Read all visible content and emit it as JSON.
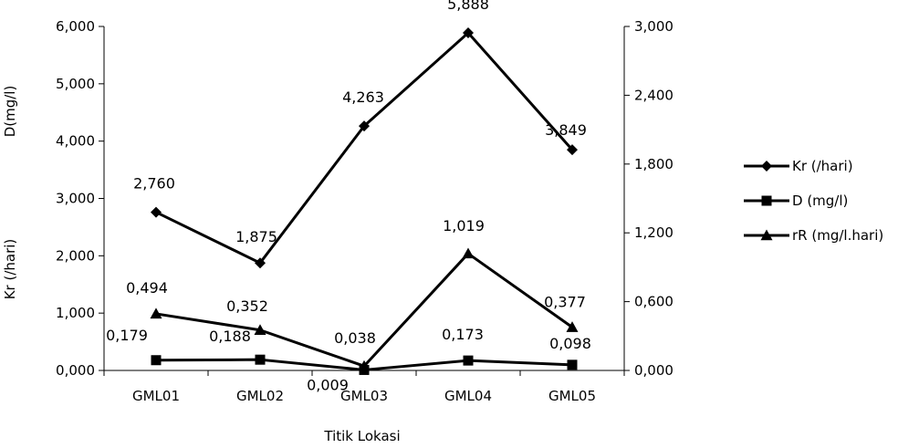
{
  "chart_data": {
    "type": "line",
    "categories": [
      "GML01",
      "GML02",
      "GML03",
      "GML04",
      "GML05"
    ],
    "xlabel": "Titik Lokasi",
    "ylabel_left_upper": "D(mg/l)",
    "ylabel_left_lower": "Kr (/hari)",
    "y_left": {
      "range": [
        0,
        6
      ],
      "ticks": [
        0,
        1,
        2,
        3,
        4,
        5,
        6
      ],
      "tick_labels": [
        "0,000",
        "1,000",
        "2,000",
        "3,000",
        "4,000",
        "5,000",
        "6,000"
      ]
    },
    "y_right": {
      "range": [
        0,
        3
      ],
      "ticks": [
        0,
        0.6,
        1.2,
        1.8,
        2.4,
        3.0
      ],
      "tick_labels": [
        "0,000",
        "0,600",
        "1,200",
        "1,800",
        "2,400",
        "3,000"
      ]
    },
    "series": [
      {
        "name": "Kr (/hari)",
        "axis": "left",
        "marker": "diamond",
        "values": [
          2.76,
          1.875,
          4.263,
          5.888,
          3.849
        ],
        "labels": [
          "2,760",
          "1,875",
          "4,263",
          "5,888",
          "3,849"
        ]
      },
      {
        "name": "D (mg/l)",
        "axis": "left",
        "marker": "square",
        "values": [
          0.179,
          0.188,
          0.009,
          0.173,
          0.098
        ],
        "labels": [
          "0,179",
          "0,188",
          "0,009",
          "0,173",
          "0,098"
        ]
      },
      {
        "name": "rR (mg/l.hari)",
        "axis": "right",
        "marker": "triangle",
        "values": [
          0.494,
          0.352,
          0.038,
          1.019,
          0.377
        ],
        "labels": [
          "0,494",
          "0,352",
          "0,038",
          "1,019",
          "0,377"
        ]
      }
    ],
    "legend_position": "right",
    "grid": false
  }
}
